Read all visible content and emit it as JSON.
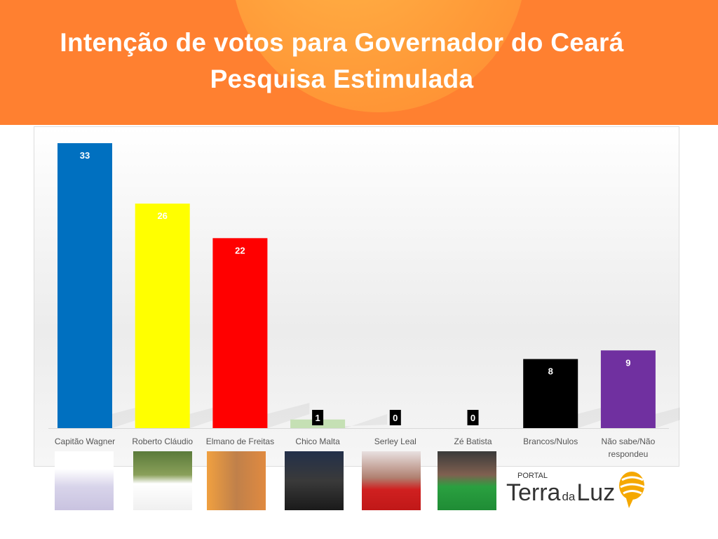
{
  "header": {
    "title_line1": "Intenção de votos para Governador do Ceará",
    "title_line2": "Pesquisa Estimulada"
  },
  "chart_data": {
    "type": "bar",
    "title": "Intenção de votos para Governador do Ceará - Pesquisa Estimulada",
    "categories": [
      "Capitão Wagner",
      "Roberto Cláudio",
      "Elmano de Freitas",
      "Chico Malta",
      "Serley Leal",
      "Zé Batista",
      "Brancos/Nulos",
      "Não sabe/Não respondeu"
    ],
    "category_lines": [
      [
        "Capitão Wagner"
      ],
      [
        "Roberto Cláudio"
      ],
      [
        "Elmano de Freitas"
      ],
      [
        "Chico Malta"
      ],
      [
        "Serley Leal"
      ],
      [
        "Zé Batista"
      ],
      [
        "Brancos/Nulos"
      ],
      [
        "Não sabe/Não",
        "respondeu"
      ]
    ],
    "values": [
      33,
      26,
      22,
      1,
      0,
      0,
      8,
      9
    ],
    "colors": [
      "#0070c0",
      "#ffff00",
      "#ff0000",
      "#c5e0b4",
      "#000000",
      "#000000",
      "#000000",
      "#7030a0"
    ],
    "ylim": [
      0,
      33
    ],
    "grid": false,
    "xlabel": "",
    "ylabel": ""
  },
  "logo": {
    "small": "PORTAL",
    "main": "Terra",
    "da": "da",
    "luz": "Luz"
  }
}
